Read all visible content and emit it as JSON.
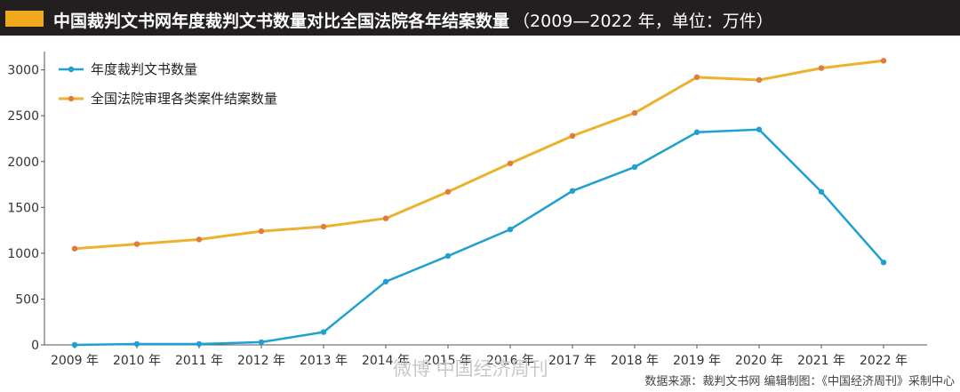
{
  "header": {
    "title": "中国裁判文书网年度裁判文书数量对比全国法院各年结案数量",
    "subtitle": "（2009—2022 年，单位：万件）"
  },
  "colors": {
    "title_bg": "#231f20",
    "accent": "#f0a81c",
    "series_documents": "#1fa0cf",
    "series_cases": "#ecb22e",
    "case_marker": "#e17a3c",
    "axis": "#555555"
  },
  "chart_data": {
    "type": "line",
    "title": "中国裁判文书网年度裁判文书数量对比全国法院各年结案数量",
    "subtitle": "（2009—2022 年，单位：万件）",
    "categories": [
      "2009 年",
      "2010 年",
      "2011 年",
      "2012 年",
      "2013 年",
      "2014 年",
      "2015 年",
      "2016 年",
      "2017 年",
      "2018 年",
      "2019 年",
      "2020 年",
      "2021 年",
      "2022 年"
    ],
    "series": [
      {
        "name": "年度裁判文书数量",
        "values": [
          0,
          10,
          10,
          30,
          140,
          690,
          970,
          1260,
          1680,
          1940,
          2320,
          2350,
          1670,
          900
        ]
      },
      {
        "name": "全国法院审理各类案件结案数量",
        "values": [
          1050,
          1100,
          1150,
          1240,
          1290,
          1380,
          1670,
          1980,
          2280,
          2530,
          2920,
          2890,
          3020,
          3100
        ]
      }
    ],
    "yticks": [
      0,
      500,
      1000,
      1500,
      2000,
      2500,
      3000
    ],
    "ylim": [
      0,
      3200
    ],
    "xlabel": "",
    "ylabel": "",
    "grid": false,
    "legend": "top-left"
  },
  "footer": {
    "watermark": "微博 中国经济周刊",
    "source": "数据来源：裁判文书网  编辑制图：《中国经济周刊》采制中心"
  }
}
